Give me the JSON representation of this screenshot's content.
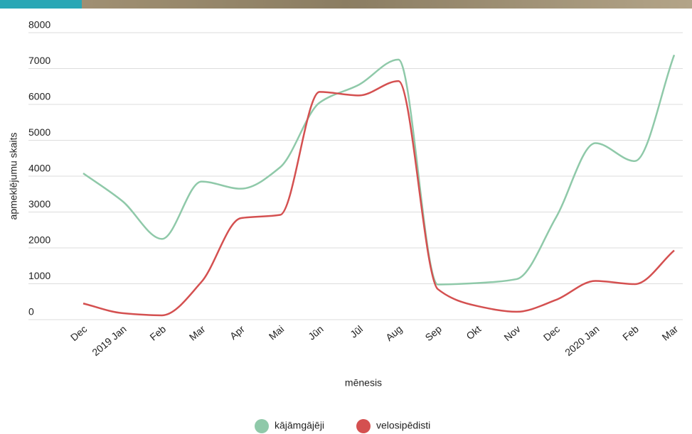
{
  "chart_data": {
    "type": "line",
    "categories": [
      "Dec",
      "2019 Jan",
      "Feb",
      "Mar",
      "Apr",
      "Mai",
      "Jūn",
      "Jūl",
      "Aug",
      "Sep",
      "Okt",
      "Nov",
      "Dec",
      "2020 Jan",
      "Feb",
      "Mar"
    ],
    "series": [
      {
        "name": "kājāmgājēji",
        "color": "#8fc9a9",
        "values": [
          4080,
          3300,
          2250,
          3850,
          3650,
          4250,
          6050,
          6550,
          7250,
          980,
          1020,
          1130,
          2850,
          4920,
          4420,
          7380
        ]
      },
      {
        "name": "velosipēdisti",
        "color": "#d45050",
        "values": [
          450,
          180,
          120,
          1050,
          2830,
          2920,
          6350,
          6250,
          6650,
          850,
          380,
          220,
          550,
          1080,
          990,
          1930
        ]
      }
    ],
    "xlabel": "mēnesis",
    "ylabel": "apmeklējumu skaits",
    "ylim": [
      0,
      8000
    ],
    "yticks": [
      0,
      1000,
      2000,
      3000,
      4000,
      5000,
      6000,
      7000,
      8000
    ],
    "grid": true,
    "legend": "bottom"
  }
}
